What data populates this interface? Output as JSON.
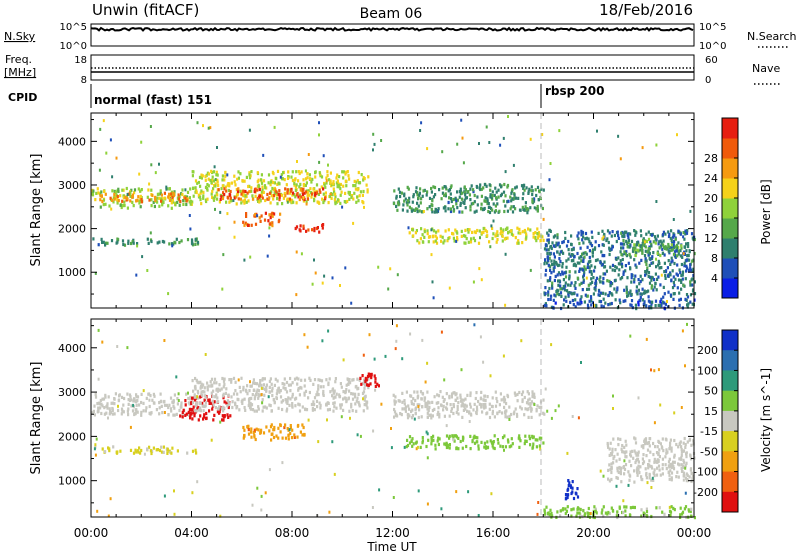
{
  "header": {
    "station": "Unwin (fitACF)",
    "beam": "Beam 06",
    "date": "18/Feb/2016"
  },
  "left_labels": {
    "nsky": "N.Sky",
    "nsky_ticks": [
      "10^5",
      "10^0"
    ],
    "freq": "Freq.",
    "freq_unit": "[MHz]",
    "freq_ticks": [
      "18",
      "8"
    ],
    "cpid": "CPID"
  },
  "right_labels": {
    "nsearch": "N.Search",
    "nsearch_ticks": [
      "10^5",
      "10^0"
    ],
    "nave": "Nave",
    "nave_ticks": [
      "60",
      "0"
    ]
  },
  "cpid_segments": [
    {
      "label": "normal (fast) 151",
      "start_hour": 0
    },
    {
      "label": "rbsp 200",
      "start_hour": 18
    }
  ],
  "time_axis": {
    "label": "Time UT",
    "ticks": [
      "00:00",
      "04:00",
      "08:00",
      "12:00",
      "16:00",
      "20:00",
      "00:00"
    ],
    "tick_hours": [
      0,
      4,
      8,
      12,
      16,
      20,
      24
    ]
  },
  "range_axis": {
    "label": "Slant Range [km]",
    "ticks": [
      "1000",
      "2000",
      "3000",
      "4000"
    ],
    "tick_values": [
      1000,
      2000,
      3000,
      4000
    ],
    "ylim": [
      180,
      4650
    ]
  },
  "power_scale": {
    "label": "Power [dB]",
    "ticks": [
      "4",
      "8",
      "12",
      "16",
      "20",
      "24",
      "28"
    ],
    "colors": [
      "#0a1ee6",
      "#1f4fb8",
      "#2f7f6e",
      "#55a84a",
      "#8fd23a",
      "#f5d21a",
      "#f59a10",
      "#f05a0a",
      "#e61e10"
    ]
  },
  "velocity_scale": {
    "label": "Velocity [m s^-1]",
    "ticks": [
      "200",
      "100",
      "50",
      "15",
      "-15",
      "-50",
      "-100",
      "-200"
    ],
    "colors": [
      "#1030c8",
      "#2b6fb0",
      "#2e9a7a",
      "#7cc83a",
      "#c8c8c0",
      "#d8d020",
      "#f0a010",
      "#f06010",
      "#e01010"
    ]
  },
  "chart_data": [
    {
      "type": "heatmap",
      "title": "Power",
      "xlabel": "Time UT",
      "ylabel": "Slant Range [km]",
      "x_range_hours": [
        0,
        24
      ],
      "y_range_km": [
        180,
        4650
      ],
      "colorbar": {
        "label": "Power [dB]",
        "range": [
          0,
          32
        ]
      },
      "regions": [
        {
          "t0": 0.0,
          "t1": 4.0,
          "r0": 2500,
          "r1": 2960,
          "value": 16
        },
        {
          "t0": 0.3,
          "t1": 3.8,
          "r0": 2650,
          "r1": 2850,
          "value": 24
        },
        {
          "t0": 0.0,
          "t1": 4.5,
          "r0": 1650,
          "r1": 1800,
          "value": 10
        },
        {
          "t0": 4.0,
          "t1": 11.0,
          "r0": 2600,
          "r1": 3350,
          "value": 18
        },
        {
          "t0": 5.0,
          "t1": 9.5,
          "r0": 2700,
          "r1": 2950,
          "value": 27
        },
        {
          "t0": 6.0,
          "t1": 7.5,
          "r0": 2100,
          "r1": 2400,
          "value": 26
        },
        {
          "t0": 8.0,
          "t1": 9.2,
          "r0": 1950,
          "r1": 2150,
          "value": 30
        },
        {
          "t0": 12.0,
          "t1": 18.0,
          "r0": 2400,
          "r1": 3050,
          "value": 10
        },
        {
          "t0": 12.5,
          "t1": 18.0,
          "r0": 1700,
          "r1": 2050,
          "value": 18
        },
        {
          "t0": 18.0,
          "t1": 24.0,
          "r0": 200,
          "r1": 420,
          "value": 6
        },
        {
          "t0": 18.0,
          "t1": 24.0,
          "r0": 450,
          "r1": 2000,
          "value": 8
        },
        {
          "t0": 21.0,
          "t1": 23.5,
          "r0": 1400,
          "r1": 1800,
          "value": 12
        }
      ]
    },
    {
      "type": "heatmap",
      "title": "Velocity",
      "xlabel": "Time UT",
      "ylabel": "Slant Range [km]",
      "x_range_hours": [
        0,
        24
      ],
      "y_range_km": [
        180,
        4650
      ],
      "colorbar": {
        "label": "Velocity [m s^-1]",
        "range": [
          -250,
          250
        ]
      },
      "regions": [
        {
          "t0": 0.0,
          "t1": 4.0,
          "r0": 2500,
          "r1": 3000,
          "value": 0
        },
        {
          "t0": 0.0,
          "t1": 4.2,
          "r0": 1650,
          "r1": 1800,
          "value": -40
        },
        {
          "t0": 3.5,
          "t1": 5.5,
          "r0": 2400,
          "r1": 2950,
          "value": -220
        },
        {
          "t0": 4.0,
          "t1": 11.0,
          "r0": 2600,
          "r1": 3350,
          "value": 0
        },
        {
          "t0": 6.0,
          "t1": 8.5,
          "r0": 1950,
          "r1": 2300,
          "value": -120
        },
        {
          "t0": 10.5,
          "t1": 11.5,
          "r0": 3150,
          "r1": 3450,
          "value": -230
        },
        {
          "t0": 12.0,
          "t1": 18.0,
          "r0": 2450,
          "r1": 3050,
          "value": 0
        },
        {
          "t0": 12.5,
          "t1": 18.0,
          "r0": 1750,
          "r1": 2050,
          "value": 60
        },
        {
          "t0": 18.8,
          "t1": 19.4,
          "r0": 600,
          "r1": 1050,
          "value": 220
        },
        {
          "t0": 18.0,
          "t1": 24.0,
          "r0": 200,
          "r1": 450,
          "value": 40
        },
        {
          "t0": 20.5,
          "t1": 24.0,
          "r0": 1000,
          "r1": 2000,
          "value": 0
        }
      ]
    }
  ]
}
